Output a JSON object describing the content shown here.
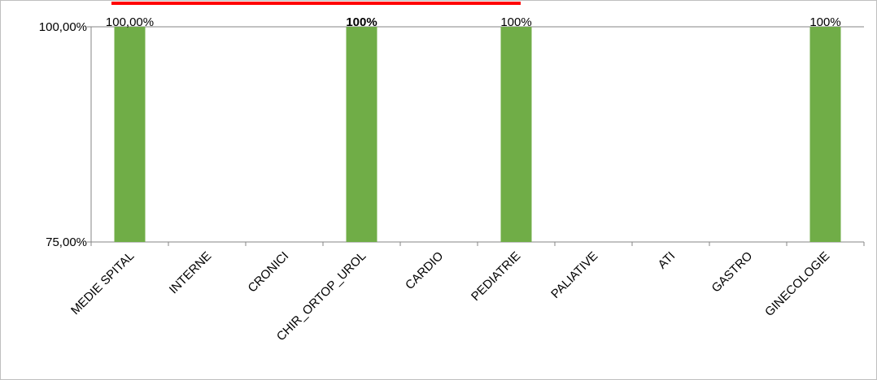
{
  "chart_data": {
    "type": "bar",
    "title": "",
    "xlabel": "",
    "ylabel": "",
    "ylim": [
      0.75,
      1.0
    ],
    "y_tick_labels": [
      "100,00%",
      "75,00%"
    ],
    "y_ticks": [
      1.0,
      0.75
    ],
    "grid": false,
    "legend": "none",
    "colors": {
      "bar": "#70ad47",
      "axis": "#868686",
      "title_underline": "#ff0000"
    },
    "categories": [
      "MEDIE SPITAL",
      "INTERNE",
      "CRONICI",
      "CHIR_ORTOP_UROL",
      "CARDIO",
      "PEDIATRIE",
      "PALIATIVE",
      "ATI",
      "GASTRO",
      "GINECOLOGIE"
    ],
    "values": [
      1.0,
      null,
      null,
      1.0,
      null,
      1.0,
      null,
      null,
      null,
      1.0
    ],
    "data_labels": [
      "100,00%",
      "",
      "",
      "100%",
      "",
      "100%",
      "",
      "",
      "",
      "100%"
    ],
    "data_label_bold": [
      false,
      false,
      false,
      true,
      false,
      false,
      false,
      false,
      false,
      false
    ]
  }
}
